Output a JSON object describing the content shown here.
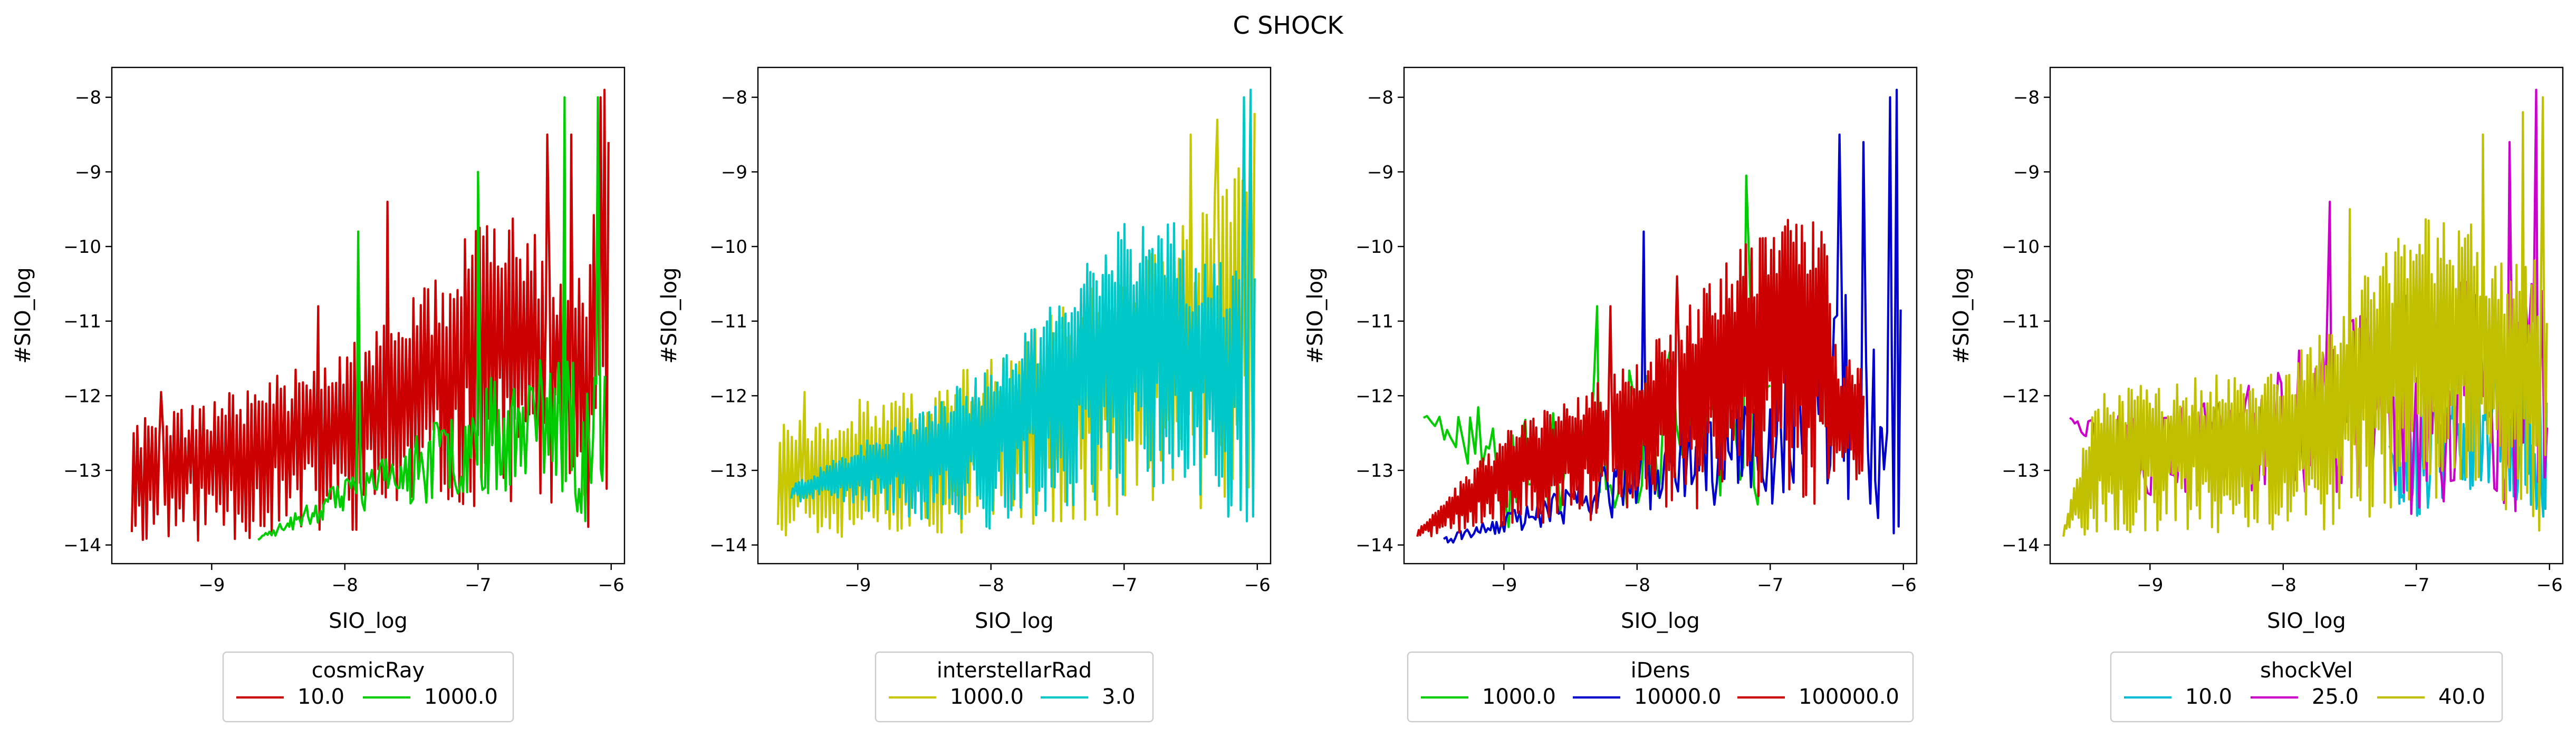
{
  "figure_title": "C SHOCK",
  "chart_data": [
    {
      "type": "line",
      "panel": "cosmicRay",
      "xlabel": "SIO_log",
      "ylabel": "#SIO_log",
      "xlim": [
        -9.75,
        -5.9
      ],
      "ylim": [
        -14.25,
        -7.6
      ],
      "xticks": [
        -9,
        -8,
        -7,
        -6
      ],
      "yticks": [
        -14,
        -13,
        -12,
        -11,
        -10,
        -9,
        -8
      ],
      "legend": {
        "title": "cosmicRay",
        "ncol": 2,
        "placement": "below"
      },
      "series": [
        {
          "name": "10.0",
          "color": "#cc0000",
          "kind": "dense",
          "seed": 11,
          "x_start": -9.6,
          "x_end": -6.02,
          "n": 260,
          "low": [
            [
              -9.6,
              -14.0
            ],
            [
              -8.0,
              -13.9
            ],
            [
              -7.0,
              -13.5
            ],
            [
              -6.5,
              -13.4
            ],
            [
              -6.02,
              -14.0
            ]
          ],
          "high": [
            [
              -9.6,
              -12.4
            ],
            [
              -8.0,
              -11.4
            ],
            [
              -7.2,
              -10.2
            ],
            [
              -7.0,
              -9.6
            ],
            [
              -6.6,
              -9.6
            ],
            [
              -6.5,
              -10.1
            ],
            [
              -6.2,
              -10.2
            ],
            [
              -6.02,
              -7.9
            ]
          ],
          "spikes": [
            [
              -9.5,
              -12.3
            ],
            [
              -9.38,
              -11.95
            ],
            [
              -8.2,
              -10.8
            ],
            [
              -7.68,
              -9.4
            ],
            [
              -6.48,
              -8.5
            ],
            [
              -6.3,
              -8.5
            ],
            [
              -6.08,
              -8.0
            ],
            [
              -6.05,
              -7.9
            ]
          ]
        },
        {
          "name": "1000.0",
          "color": "#00cc00",
          "kind": "sparse",
          "seed": 23,
          "x_start": -8.65,
          "x_end": -6.05,
          "n": 180,
          "low": [
            [
              -8.65,
              -13.95
            ],
            [
              -8.0,
              -13.6
            ],
            [
              -7.2,
              -13.4
            ],
            [
              -6.5,
              -13.2
            ],
            [
              -6.05,
              -14.0
            ]
          ],
          "high": [
            [
              -8.65,
              -13.9
            ],
            [
              -8.0,
              -13.1
            ],
            [
              -7.5,
              -12.6
            ],
            [
              -7.0,
              -11.8
            ],
            [
              -6.5,
              -11.5
            ],
            [
              -6.2,
              -11.3
            ],
            [
              -6.05,
              -11.6
            ]
          ],
          "spikes": [
            [
              -7.9,
              -9.8
            ],
            [
              -7.0,
              -9.0
            ],
            [
              -6.35,
              -8.0
            ],
            [
              -6.1,
              -8.0
            ]
          ]
        }
      ]
    },
    {
      "type": "line",
      "panel": "interstellarRad",
      "xlabel": "SIO_log",
      "ylabel": "#SIO_log",
      "xlim": [
        -9.75,
        -5.9
      ],
      "ylim": [
        -14.25,
        -7.6
      ],
      "xticks": [
        -9,
        -8,
        -7,
        -6
      ],
      "yticks": [
        -14,
        -13,
        -12,
        -11,
        -10,
        -9,
        -8
      ],
      "legend": {
        "title": "interstellarRad",
        "ncol": 2,
        "placement": "below"
      },
      "series": [
        {
          "name": "1000.0",
          "color": "#c8c800",
          "kind": "dense",
          "seed": 37,
          "x_start": -9.6,
          "x_end": -6.02,
          "n": 240,
          "low": [
            [
              -9.6,
              -13.9
            ],
            [
              -8.0,
              -13.9
            ],
            [
              -7.0,
              -13.6
            ],
            [
              -6.5,
              -13.5
            ],
            [
              -6.02,
              -13.9
            ]
          ],
          "high": [
            [
              -9.6,
              -12.4
            ],
            [
              -8.0,
              -11.5
            ],
            [
              -7.0,
              -10.2
            ],
            [
              -6.5,
              -9.6
            ],
            [
              -6.02,
              -8.0
            ]
          ],
          "spikes": [
            [
              -9.4,
              -11.95
            ],
            [
              -6.95,
              -10.8
            ],
            [
              -6.5,
              -8.5
            ],
            [
              -6.3,
              -8.3
            ],
            [
              -6.05,
              -7.9
            ]
          ]
        },
        {
          "name": "3.0",
          "color": "#00c8c8",
          "kind": "dense",
          "seed": 41,
          "x_start": -9.5,
          "x_end": -6.02,
          "n": 300,
          "low": [
            [
              -9.5,
              -13.4
            ],
            [
              -8.0,
              -13.8
            ],
            [
              -7.0,
              -13.4
            ],
            [
              -6.5,
              -13.3
            ],
            [
              -6.02,
              -13.9
            ]
          ],
          "high": [
            [
              -9.5,
              -13.2
            ],
            [
              -8.0,
              -11.6
            ],
            [
              -7.0,
              -9.6
            ],
            [
              -6.6,
              -9.6
            ],
            [
              -6.5,
              -10.1
            ],
            [
              -6.02,
              -10.2
            ]
          ],
          "spikes": [
            [
              -6.1,
              -8.0
            ],
            [
              -6.05,
              -7.9
            ]
          ]
        }
      ]
    },
    {
      "type": "line",
      "panel": "iDens",
      "xlabel": "SIO_log",
      "ylabel": "#SIO_log",
      "xlim": [
        -9.75,
        -5.9
      ],
      "ylim": [
        -14.25,
        -7.6
      ],
      "xticks": [
        -9,
        -8,
        -7,
        -6
      ],
      "yticks": [
        -14,
        -13,
        -12,
        -11,
        -10,
        -9,
        -8
      ],
      "legend": {
        "title": "iDens",
        "ncol": 3,
        "placement": "below"
      },
      "series": [
        {
          "name": "1000.0",
          "color": "#00cc00",
          "kind": "sparse",
          "seed": 53,
          "x_start": -9.6,
          "x_end": -7.0,
          "n": 90,
          "low": [
            [
              -9.6,
              -12.3
            ],
            [
              -9.2,
              -13.1
            ],
            [
              -9.0,
              -14.0
            ],
            [
              -8.0,
              -13.6
            ],
            [
              -7.0,
              -13.5
            ]
          ],
          "high": [
            [
              -9.6,
              -12.25
            ],
            [
              -9.3,
              -11.95
            ],
            [
              -8.5,
              -12.2
            ],
            [
              -8.0,
              -11.5
            ],
            [
              -7.5,
              -11.0
            ],
            [
              -7.0,
              -11.3
            ]
          ],
          "spikes": [
            [
              -8.3,
              -10.8
            ],
            [
              -7.18,
              -9.05
            ]
          ]
        },
        {
          "name": "10000.0",
          "color": "#0000cc",
          "kind": "sparse",
          "seed": 61,
          "x_start": -9.45,
          "x_end": -6.02,
          "n": 200,
          "low": [
            [
              -9.45,
              -14.0
            ],
            [
              -8.5,
              -13.7
            ],
            [
              -7.5,
              -13.5
            ],
            [
              -6.5,
              -13.5
            ],
            [
              -6.02,
              -13.9
            ]
          ],
          "high": [
            [
              -9.45,
              -13.9
            ],
            [
              -8.5,
              -13.2
            ],
            [
              -7.5,
              -12.2
            ],
            [
              -6.5,
              -10.2
            ],
            [
              -6.02,
              -10.1
            ]
          ],
          "spikes": [
            [
              -7.95,
              -9.8
            ],
            [
              -6.48,
              -8.5
            ],
            [
              -6.3,
              -8.6
            ],
            [
              -6.1,
              -8.0
            ],
            [
              -6.05,
              -7.9
            ]
          ]
        },
        {
          "name": "100000.0",
          "color": "#cc0000",
          "kind": "dense",
          "seed": 71,
          "x_start": -9.65,
          "x_end": -6.3,
          "n": 320,
          "low": [
            [
              -9.65,
              -13.9
            ],
            [
              -9.0,
              -13.8
            ],
            [
              -8.0,
              -13.6
            ],
            [
              -7.0,
              -13.4
            ],
            [
              -6.3,
              -13.5
            ]
          ],
          "high": [
            [
              -9.65,
              -13.8
            ],
            [
              -9.0,
              -12.5
            ],
            [
              -8.0,
              -11.5
            ],
            [
              -7.0,
              -9.6
            ],
            [
              -6.6,
              -9.6
            ],
            [
              -6.5,
              -11.4
            ],
            [
              -6.3,
              -11.6
            ]
          ],
          "spikes": [
            [
              -8.2,
              -10.8
            ],
            [
              -7.7,
              -10.4
            ]
          ]
        }
      ]
    },
    {
      "type": "line",
      "panel": "shockVel",
      "xlabel": "SIO_log",
      "ylabel": "#SIO_log",
      "xlim": [
        -9.75,
        -5.9
      ],
      "ylim": [
        -14.25,
        -7.6
      ],
      "xticks": [
        -9,
        -8,
        -7,
        -6
      ],
      "yticks": [
        -14,
        -13,
        -12,
        -11,
        -10,
        -9,
        -8
      ],
      "legend": {
        "title": "shockVel",
        "ncol": 3,
        "placement": "below"
      },
      "series": [
        {
          "name": "10.0",
          "color": "#00bcd4",
          "kind": "sparse",
          "seed": 83,
          "x_start": -7.2,
          "x_end": -6.02,
          "n": 120,
          "low": [
            [
              -7.2,
              -13.8
            ],
            [
              -6.5,
              -13.2
            ],
            [
              -6.02,
              -13.9
            ]
          ],
          "high": [
            [
              -7.2,
              -12.4
            ],
            [
              -6.5,
              -11.3
            ],
            [
              -6.02,
              -11.4
            ]
          ],
          "spikes": []
        },
        {
          "name": "25.0",
          "color": "#cc00cc",
          "kind": "sparse",
          "seed": 97,
          "x_start": -9.6,
          "x_end": -6.02,
          "n": 180,
          "low": [
            [
              -9.6,
              -12.3
            ],
            [
              -9.2,
              -13.4
            ],
            [
              -8.0,
              -13.3
            ],
            [
              -7.0,
              -13.7
            ],
            [
              -6.5,
              -13.4
            ],
            [
              -6.02,
              -14.0
            ]
          ],
          "high": [
            [
              -9.6,
              -12.25
            ],
            [
              -8.5,
              -12.0
            ],
            [
              -8.0,
              -11.5
            ],
            [
              -7.0,
              -10.5
            ],
            [
              -6.5,
              -10.4
            ],
            [
              -6.02,
              -10.4
            ]
          ],
          "spikes": [
            [
              -7.65,
              -9.4
            ],
            [
              -6.3,
              -8.6
            ],
            [
              -6.1,
              -7.9
            ]
          ]
        },
        {
          "name": "40.0",
          "color": "#c0c000",
          "kind": "dense",
          "seed": 101,
          "x_start": -9.65,
          "x_end": -6.02,
          "n": 320,
          "low": [
            [
              -9.65,
              -13.9
            ],
            [
              -8.0,
              -13.9
            ],
            [
              -7.0,
              -13.6
            ],
            [
              -6.5,
              -13.4
            ],
            [
              -6.02,
              -13.9
            ]
          ],
          "high": [
            [
              -9.65,
              -13.8
            ],
            [
              -9.4,
              -11.95
            ],
            [
              -8.0,
              -11.6
            ],
            [
              -7.0,
              -9.6
            ],
            [
              -6.6,
              -9.6
            ],
            [
              -6.5,
              -10.1
            ],
            [
              -6.02,
              -10.2
            ]
          ],
          "spikes": [
            [
              -7.5,
              -9.5
            ],
            [
              -6.5,
              -8.5
            ],
            [
              -6.2,
              -8.2
            ],
            [
              -6.05,
              -8.0
            ]
          ]
        }
      ]
    }
  ]
}
